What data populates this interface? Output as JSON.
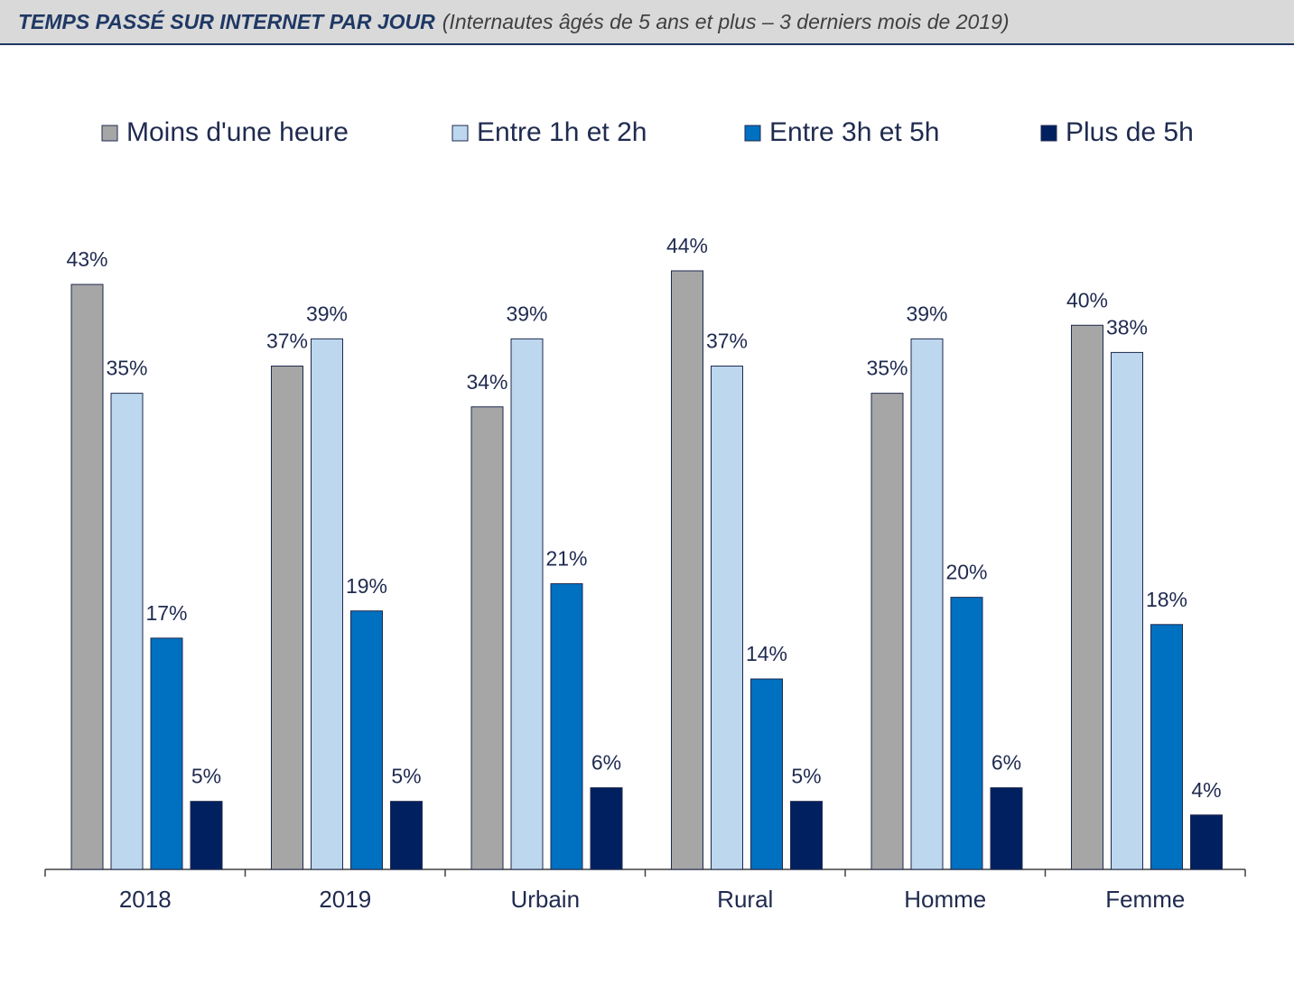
{
  "chart_data": {
    "type": "bar",
    "title": "TEMPS PASSÉ SUR INTERNET PAR JOUR",
    "subtitle": "(Internautes âgés de 5 ans et plus – 3 derniers mois de 2019)",
    "categories": [
      "2018",
      "2019",
      "Urbain",
      "Rural",
      "Homme",
      "Femme"
    ],
    "series": [
      {
        "name": "Moins d'une heure",
        "color": "#a6a6a6",
        "values": [
          43,
          37,
          34,
          44,
          35,
          40
        ],
        "value_labels": [
          "43%",
          "37%",
          "34%",
          "44%",
          "35%",
          "40%"
        ]
      },
      {
        "name": "Entre 1h et 2h",
        "color": "#bdd7ee",
        "values": [
          35,
          39,
          39,
          37,
          39,
          38
        ],
        "value_labels": [
          "35%",
          "39%",
          "39%",
          "37%",
          "39%",
          "38%"
        ]
      },
      {
        "name": "Entre 3h et 5h",
        "color": "#0070c0",
        "values": [
          17,
          19,
          21,
          14,
          20,
          18
        ],
        "value_labels": [
          "17%",
          "19%",
          "21%",
          "14%",
          "20%",
          "18%"
        ]
      },
      {
        "name": "Plus de 5h",
        "color": "#002060",
        "values": [
          5,
          5,
          6,
          5,
          6,
          4
        ],
        "value_labels": [
          "5%",
          "5%",
          "6%",
          "5%",
          "6%",
          "4%"
        ]
      }
    ],
    "legend": "top"
  }
}
